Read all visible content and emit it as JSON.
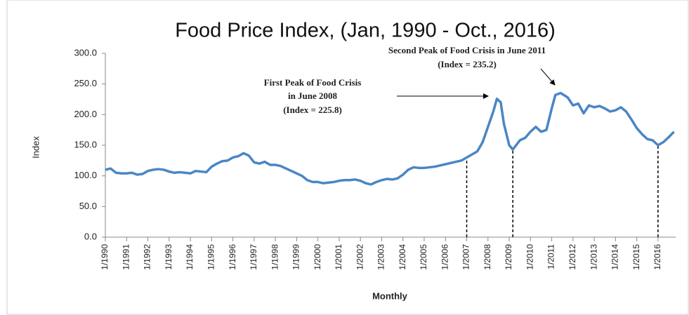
{
  "chart_data": {
    "type": "line",
    "title": "Food Price Index, (Jan, 1990 - Oct., 2016)",
    "x_label": "Monthly",
    "y_label": "Index",
    "series": [
      {
        "name": "Food Price Index",
        "color": "#4a86c5",
        "x": [
          1990,
          1990.25,
          1990.5,
          1990.75,
          1991,
          1991.25,
          1991.5,
          1991.75,
          1992,
          1992.25,
          1992.5,
          1992.75,
          1993,
          1993.25,
          1993.5,
          1993.75,
          1994,
          1994.25,
          1994.5,
          1994.75,
          1995,
          1995.25,
          1995.5,
          1995.75,
          1996,
          1996.25,
          1996.5,
          1996.75,
          1997,
          1997.25,
          1997.5,
          1997.75,
          1998,
          1998.25,
          1998.5,
          1998.75,
          1999,
          1999.25,
          1999.5,
          1999.75,
          2000,
          2000.25,
          2000.5,
          2000.75,
          2001,
          2001.25,
          2001.5,
          2001.75,
          2002,
          2002.25,
          2002.5,
          2002.75,
          2003,
          2003.25,
          2003.5,
          2003.75,
          2004,
          2004.25,
          2004.5,
          2004.75,
          2005,
          2005.25,
          2005.5,
          2005.75,
          2006,
          2006.25,
          2006.5,
          2006.75,
          2007,
          2007.5,
          2007.75,
          2008,
          2008.25,
          2008.42,
          2008.6,
          2008.75,
          2009,
          2009.17,
          2009.5,
          2009.75,
          2010,
          2010.25,
          2010.5,
          2010.75,
          2011,
          2011.17,
          2011.42,
          2011.75,
          2012,
          2012.25,
          2012.5,
          2012.75,
          2013,
          2013.25,
          2013.5,
          2013.75,
          2014,
          2014.25,
          2014.5,
          2014.75,
          2015,
          2015.25,
          2015.5,
          2015.75,
          2016,
          2016.25,
          2016.5,
          2016.75
        ],
        "values": [
          110,
          112,
          105,
          104,
          104,
          105,
          102,
          103,
          108,
          110,
          111,
          110,
          107,
          105,
          106,
          105,
          104,
          108,
          107,
          106,
          115,
          120,
          124,
          125,
          130,
          132,
          137,
          133,
          122,
          120,
          123,
          118,
          118,
          116,
          112,
          108,
          104,
          100,
          93,
          90,
          90,
          88,
          89,
          90,
          92,
          93,
          93,
          94,
          92,
          88,
          86,
          90,
          93,
          95,
          94,
          96,
          102,
          110,
          114,
          113,
          113,
          114,
          115,
          117,
          119,
          121,
          123,
          125,
          130,
          140,
          155,
          180,
          205,
          225.8,
          220,
          185,
          150,
          143,
          158,
          162,
          172,
          180,
          172,
          175,
          210,
          232,
          235.2,
          228,
          215,
          218,
          202,
          215,
          212,
          214,
          210,
          205,
          207,
          212,
          205,
          192,
          178,
          168,
          160,
          158,
          150,
          155,
          163,
          172
        ]
      }
    ],
    "ylim": [
      0,
      300
    ],
    "yticks": [
      {
        "value": 0,
        "label": "0.0"
      },
      {
        "value": 50,
        "label": "50.0"
      },
      {
        "value": 100,
        "label": "100.0"
      },
      {
        "value": 150,
        "label": "150.0"
      },
      {
        "value": 200,
        "label": "200.0"
      },
      {
        "value": 250,
        "label": "250.0"
      },
      {
        "value": 300,
        "label": "300.0"
      }
    ],
    "xlim": [
      1990,
      2016.83
    ],
    "xticks": [
      {
        "value": 1990,
        "label": "1/1990"
      },
      {
        "value": 1991,
        "label": "1/1991"
      },
      {
        "value": 1992,
        "label": "1/1992"
      },
      {
        "value": 1993,
        "label": "1/1993"
      },
      {
        "value": 1994,
        "label": "1/1994"
      },
      {
        "value": 1995,
        "label": "1/1995"
      },
      {
        "value": 1996,
        "label": "1/1996"
      },
      {
        "value": 1997,
        "label": "1/1997"
      },
      {
        "value": 1998,
        "label": "1/1998"
      },
      {
        "value": 1999,
        "label": "1/1999"
      },
      {
        "value": 2000,
        "label": "1/2000"
      },
      {
        "value": 2001,
        "label": "1/2001"
      },
      {
        "value": 2002,
        "label": "1/2002"
      },
      {
        "value": 2003,
        "label": "1/2003"
      },
      {
        "value": 2004,
        "label": "1/2004"
      },
      {
        "value": 2005,
        "label": "1/2005"
      },
      {
        "value": 2006,
        "label": "1/2006"
      },
      {
        "value": 2007,
        "label": "1/2007"
      },
      {
        "value": 2008,
        "label": "1/2008"
      },
      {
        "value": 2009,
        "label": "1/2009"
      },
      {
        "value": 2010,
        "label": "1/2010"
      },
      {
        "value": 2011,
        "label": "1/2011"
      },
      {
        "value": 2012,
        "label": "1/2012"
      },
      {
        "value": 2013,
        "label": "1/2013"
      },
      {
        "value": 2014,
        "label": "1/2014"
      },
      {
        "value": 2015,
        "label": "1/2015"
      },
      {
        "value": 2016,
        "label": "1/2016"
      }
    ],
    "vlines": [
      2007,
      2009.17,
      2016
    ],
    "annotations": [
      {
        "lines": [
          "First Peak of Food Crisis",
          "in June 2008",
          "(Index = 225.8)"
        ]
      },
      {
        "lines": [
          "Second Peak of Food Crisis in June 2011",
          "(Index = 235.2)"
        ]
      }
    ]
  }
}
